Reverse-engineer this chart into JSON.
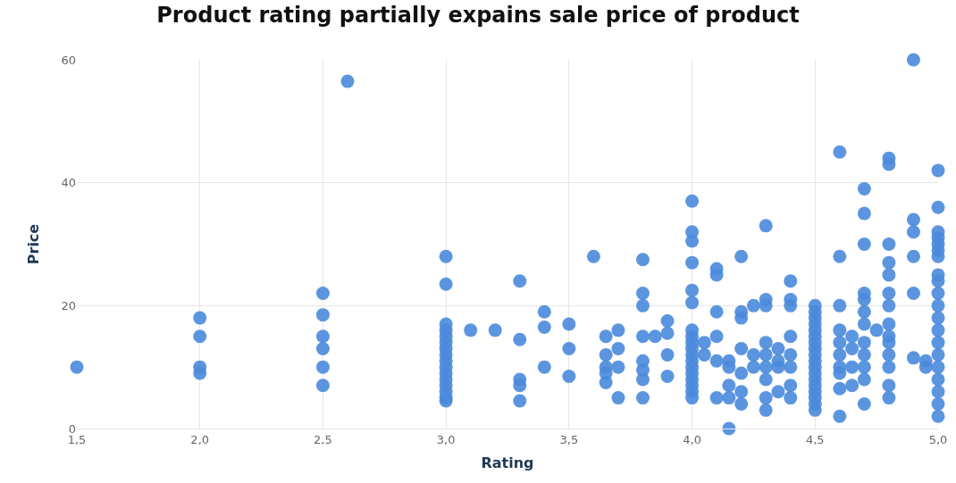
{
  "chart_data": {
    "type": "scatter",
    "title": "Product rating partially expains sale price of product",
    "xlabel": "Rating",
    "ylabel": "Price",
    "xlim": [
      1.5,
      5
    ],
    "ylim": [
      0,
      60
    ],
    "xticks": [
      {
        "value": 1.5,
        "label": "1,5"
      },
      {
        "value": 2,
        "label": "2,0"
      },
      {
        "value": 2.5,
        "label": "2,5"
      },
      {
        "value": 3,
        "label": "3,0"
      },
      {
        "value": 3.5,
        "label": "3,5"
      },
      {
        "value": 4,
        "label": "4,0"
      },
      {
        "value": 4.5,
        "label": "4,5"
      },
      {
        "value": 5,
        "label": "5,0"
      }
    ],
    "yticks": [
      0,
      20,
      40,
      60
    ],
    "grid": true,
    "marker": "circle",
    "series": [
      {
        "color": "#4a89dc",
        "x": [
          1.5,
          2,
          2,
          2,
          2,
          2.5,
          2.5,
          2.5,
          2.5,
          2.5,
          2.5,
          2.6,
          3,
          3,
          3,
          3,
          3,
          3,
          3,
          3,
          3,
          3,
          3,
          3,
          3,
          3,
          3,
          3,
          3.1,
          3.2,
          3.3,
          3.3,
          3.3,
          3.3,
          3.3,
          3.4,
          3.4,
          3.4,
          3.5,
          3.5,
          3.5,
          3.6,
          3.65,
          3.65,
          3.65,
          3.65,
          3.65,
          3.7,
          3.7,
          3.7,
          3.7,
          3.8,
          3.8,
          3.8,
          3.8,
          3.8,
          3.8,
          3.8,
          3.8,
          3.85,
          3.9,
          3.9,
          3.9,
          3.9,
          4,
          4,
          4,
          4,
          4,
          4,
          4,
          4,
          4,
          4,
          4,
          4,
          4,
          4,
          4,
          4,
          4,
          4,
          4.05,
          4.05,
          4.1,
          4.1,
          4.1,
          4.1,
          4.1,
          4.1,
          4.15,
          4.15,
          4.15,
          4.15,
          4.15,
          4.2,
          4.2,
          4.2,
          4.2,
          4.2,
          4.2,
          4.2,
          4.25,
          4.25,
          4.25,
          4.3,
          4.3,
          4.3,
          4.3,
          4.3,
          4.3,
          4.3,
          4.3,
          4.3,
          4.35,
          4.35,
          4.35,
          4.35,
          4.4,
          4.4,
          4.4,
          4.4,
          4.4,
          4.4,
          4.4,
          4.4,
          4.5,
          4.5,
          4.5,
          4.5,
          4.5,
          4.5,
          4.5,
          4.5,
          4.5,
          4.5,
          4.5,
          4.5,
          4.5,
          4.5,
          4.5,
          4.5,
          4.5,
          4.5,
          4.6,
          4.6,
          4.6,
          4.6,
          4.6,
          4.6,
          4.6,
          4.6,
          4.6,
          4.6,
          4.65,
          4.65,
          4.65,
          4.65,
          4.7,
          4.7,
          4.7,
          4.7,
          4.7,
          4.7,
          4.7,
          4.7,
          4.7,
          4.7,
          4.7,
          4.7,
          4.75,
          4.8,
          4.8,
          4.8,
          4.8,
          4.8,
          4.8,
          4.8,
          4.8,
          4.8,
          4.8,
          4.8,
          4.8,
          4.8,
          4.8,
          4.9,
          4.9,
          4.9,
          4.9,
          4.9,
          4.9,
          4.95,
          4.95,
          5,
          5,
          5,
          5,
          5,
          5,
          5,
          5,
          5,
          5,
          5,
          5,
          5,
          5,
          5,
          5,
          5,
          5,
          5,
          5
        ],
        "values": [
          10,
          18,
          15,
          10,
          9,
          22,
          18.5,
          15,
          13,
          10,
          7,
          56.5,
          28,
          23.5,
          17,
          16,
          15,
          14,
          13,
          12,
          11,
          10,
          9,
          8,
          7,
          6,
          5,
          4.5,
          16,
          16,
          24,
          14.5,
          8,
          7,
          4.5,
          19,
          16.5,
          10,
          17,
          13,
          8.5,
          28,
          15,
          12,
          10,
          9,
          7.5,
          16,
          13,
          10,
          5,
          27.5,
          22,
          20,
          15,
          11,
          9.5,
          8,
          5,
          15,
          17.5,
          15.5,
          12,
          8.5,
          37,
          32,
          30.5,
          27,
          22.5,
          20.5,
          16,
          15,
          14,
          13,
          12,
          11,
          10,
          9,
          8,
          7,
          6,
          5,
          14,
          12,
          26,
          25,
          19,
          15,
          11,
          5,
          11,
          10,
          7,
          5,
          0,
          28,
          19,
          18,
          13,
          9,
          6,
          4,
          20,
          12,
          10,
          33,
          21,
          20,
          14,
          12,
          10,
          8,
          5,
          3,
          13,
          11,
          10,
          6,
          24,
          21,
          20,
          15,
          12,
          10,
          7,
          5,
          20,
          19,
          18,
          17,
          16,
          15,
          14,
          13,
          12,
          11,
          10,
          9,
          8,
          7,
          6,
          5,
          4,
          3,
          45,
          28,
          20,
          16,
          14,
          12,
          10,
          9,
          6.5,
          2,
          15,
          13,
          10,
          7,
          39,
          35,
          30,
          22,
          21,
          19,
          17,
          14,
          12,
          10,
          8,
          4,
          16,
          44,
          43,
          30,
          27,
          25,
          22,
          20,
          17,
          15,
          14,
          12,
          10,
          7,
          5,
          60,
          34,
          32,
          28,
          22,
          11.5,
          11,
          10,
          42,
          36,
          32,
          31,
          30,
          29,
          28,
          25,
          24,
          22,
          20,
          18,
          16,
          14,
          12,
          10,
          8,
          6,
          4,
          2
        ]
      }
    ]
  }
}
